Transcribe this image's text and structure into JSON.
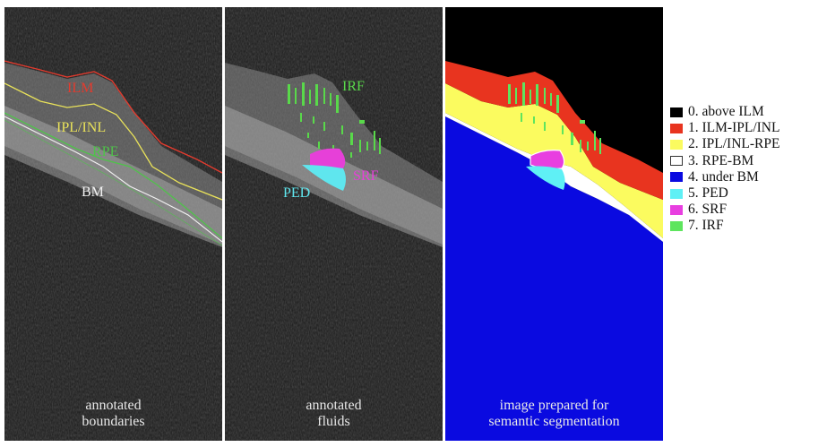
{
  "panels": [
    {
      "id": "annotated-boundaries",
      "caption_line1": "annotated",
      "caption_line2": "boundaries",
      "labels": [
        {
          "text": "ILM",
          "color": "#e23b2e"
        },
        {
          "text": "IPL/INL",
          "color": "#e9e25a"
        },
        {
          "text": "RPE",
          "color": "#4fc24a"
        },
        {
          "text": "BM",
          "color": "#f2f2f2"
        }
      ]
    },
    {
      "id": "annotated-fluids",
      "caption_line1": "annotated",
      "caption_line2": "fluids",
      "labels": [
        {
          "text": "IRF",
          "color": "#59d94a"
        },
        {
          "text": "SRF",
          "color": "#e640d8"
        },
        {
          "text": "PED",
          "color": "#5fe6ee"
        }
      ]
    },
    {
      "id": "segmentation",
      "caption_line1": "image prepared for",
      "caption_line2": "semantic segmentation"
    }
  ],
  "legend": [
    {
      "label": "0. above ILM",
      "color": "#000000"
    },
    {
      "label": "1. ILM-IPL/INL",
      "color": "#e8341f"
    },
    {
      "label": "2. IPL/INL-RPE",
      "color": "#fbfb5f"
    },
    {
      "label": "3. RPE-BM",
      "color": "#ffffff"
    },
    {
      "label": "4. under BM",
      "color": "#0a0ae0"
    },
    {
      "label": "5. PED",
      "color": "#5ff0f5"
    },
    {
      "label": "6. SRF",
      "color": "#e83fe0"
    },
    {
      "label": "7. IRF",
      "color": "#5ee55e"
    }
  ]
}
